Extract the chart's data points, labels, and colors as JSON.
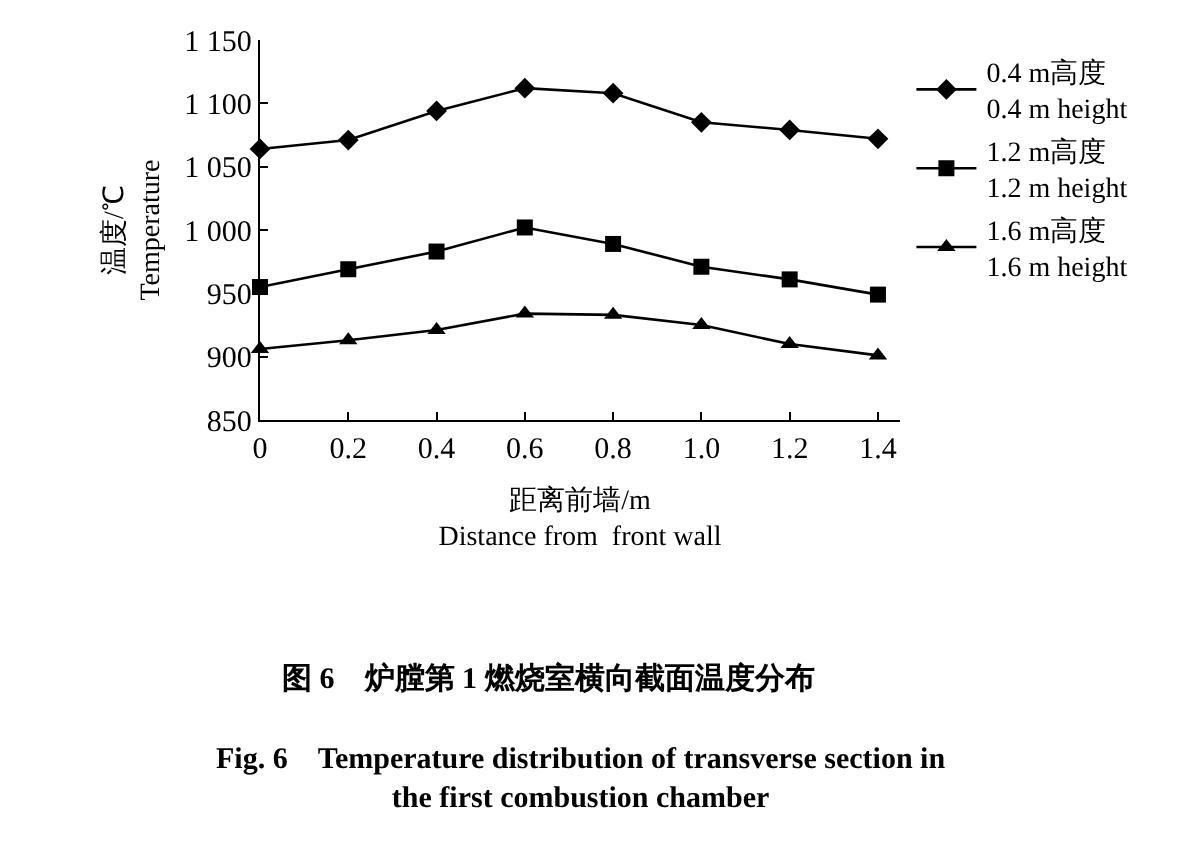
{
  "chart_data": {
    "type": "line",
    "xlabel": "距离前墙/m\nDistance from  front wall",
    "ylabel": "温度/℃\nTemperature",
    "x": [
      0,
      0.2,
      0.4,
      0.6,
      0.8,
      1.0,
      1.2,
      1.4
    ],
    "xlim": [
      0,
      1.45
    ],
    "xticks": [
      0,
      0.2,
      0.4,
      0.6,
      0.8,
      {
        "value": 1.0,
        "label": "1.0"
      },
      1.2,
      1.4
    ],
    "ylim": [
      850,
      1150
    ],
    "yticks": [
      850,
      900,
      950,
      {
        "value": 1000,
        "label": "1 000"
      },
      {
        "value": 1050,
        "label": "1 050"
      },
      {
        "value": 1100,
        "label": "1 100"
      },
      {
        "value": 1150,
        "label": "1 150"
      }
    ],
    "series": [
      {
        "name": "0.4 m高度\n0.4 m height",
        "color": "#000000",
        "marker": "diamond",
        "values": [
          1064,
          1071,
          1094,
          1112,
          1108,
          1085,
          1079,
          1072
        ]
      },
      {
        "name": "1.2 m高度\n1.2 m height",
        "color": "#000000",
        "marker": "square",
        "values": [
          955,
          969,
          983,
          1002,
          989,
          971,
          961,
          949
        ]
      },
      {
        "name": "1.6 m高度\n1.6 m height",
        "color": "#000000",
        "marker": "triangle",
        "values": [
          906,
          913,
          921,
          934,
          933,
          925,
          910,
          901
        ]
      }
    ],
    "legend": "right",
    "line_style": "solid",
    "annotations": [
      "图 6　炉膛第 1 燃烧室横向截面温度分布",
      "Fig. 6　Temperature distribution of transverse section in\nthe first combustion chamber"
    ]
  }
}
